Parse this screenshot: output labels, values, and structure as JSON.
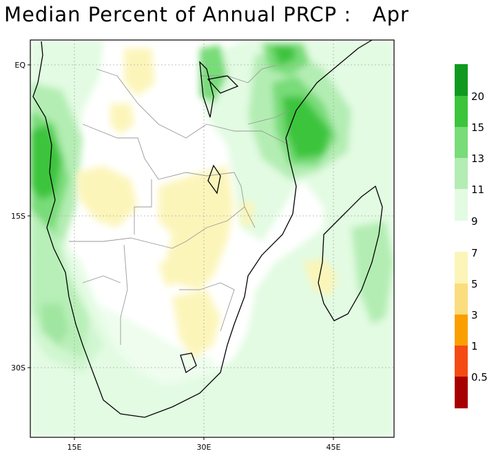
{
  "title": "Median Percent of Annual PRCP :   Apr",
  "map": {
    "lat_labels": [
      "EQ",
      "15S",
      "30S"
    ],
    "lon_labels": [
      "15E",
      "30E",
      "45E"
    ],
    "grid": true,
    "coastline_color": "#000000",
    "border_color": "#999999"
  },
  "colorbar_wet": {
    "colors": [
      "#0f9a1f",
      "#3cc43c",
      "#78dc78",
      "#b3edb3",
      "#e2fbe2"
    ],
    "labels": [
      "20",
      "15",
      "13",
      "11",
      "9"
    ]
  },
  "colorbar_dry": {
    "colors": [
      "#fcf5b7",
      "#fadd7c",
      "#fb9f00",
      "#f64a14",
      "#a60000"
    ],
    "labels": [
      "7",
      "5",
      "3",
      "1",
      "0.5"
    ]
  }
}
